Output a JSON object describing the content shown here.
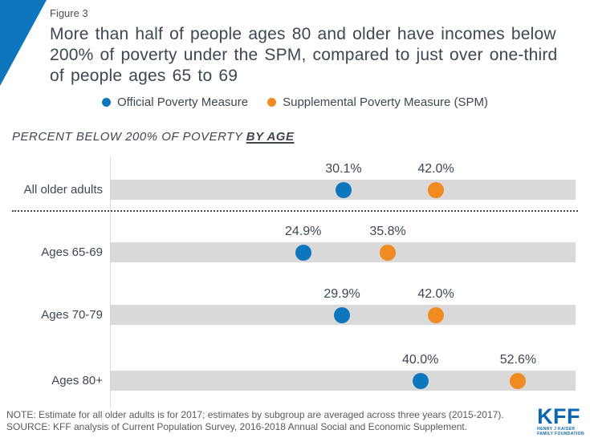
{
  "figure_label": "Figure 3",
  "header": {
    "title_lines": [
      "More than half of people ages 80 and older have incomes below",
      "200% of poverty under the SPM, compared to just over one-third",
      "of people ages 65 to 69"
    ]
  },
  "legend": [
    {
      "label": "Official Poverty Measure",
      "color": "#0e76bc"
    },
    {
      "label": "Supplemental Poverty Measure (SPM)",
      "color": "#f08b22"
    }
  ],
  "subtitle": {
    "main": "PERCENT BELOW 200% OF POVERTY ",
    "emphasis": "BY AGE"
  },
  "chart_data": {
    "type": "scatter",
    "subtype": "horizontal-dot-plot",
    "title": "PERCENT BELOW 200% OF POVERTY BY AGE",
    "categories": [
      "All older adults",
      "Ages 65-69",
      "Ages 70-79",
      "Ages 80+"
    ],
    "series": [
      {
        "name": "Official Poverty Measure",
        "color": "#0e76bc",
        "values": [
          30.1,
          24.9,
          29.9,
          40.0
        ],
        "labels": [
          "30.1%",
          "24.9%",
          "29.9%",
          "40.0%"
        ]
      },
      {
        "name": "Supplemental Poverty Measure (SPM)",
        "color": "#f08b22",
        "values": [
          42.0,
          35.8,
          42.0,
          52.6
        ],
        "labels": [
          "42.0%",
          "35.8%",
          "42.0%",
          "52.6%"
        ]
      }
    ],
    "xlim": [
      0,
      60
    ],
    "grid": false,
    "legend_position": "top-center",
    "band_color": "#d9d9d9",
    "separator_after_category_index": 0
  },
  "footer": {
    "note": "NOTE: Estimate for all older adults is for 2017; estimates by subgroup are averaged across three years (2015-2017).",
    "source": "SOURCE: KFF analysis of Current Population Survey, 2016-2018 Annual Social and Economic Supplement."
  },
  "logo": {
    "text": "KFF",
    "sub1": "HENRY J KAISER",
    "sub2": "FAMILY FOUNDATION",
    "color": "#0b66b3"
  }
}
